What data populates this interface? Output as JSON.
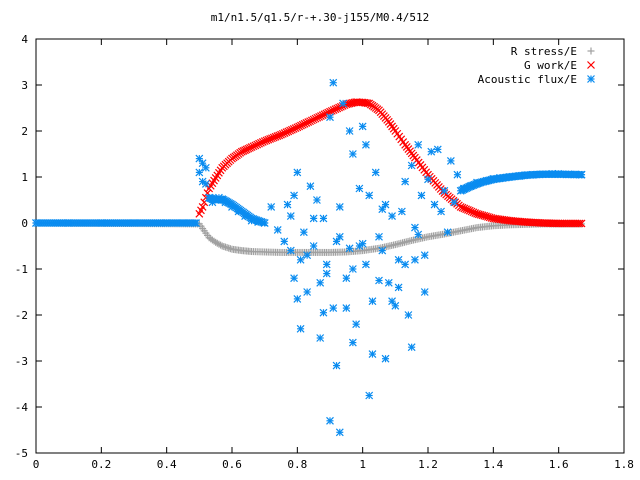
{
  "chart_data": {
    "type": "scatter",
    "title": "m1/n1.5/q1.5/r-+.30-j155/M0.4/512",
    "xlabel": "",
    "ylabel": "",
    "xlim": [
      0,
      1.8
    ],
    "ylim": [
      -5,
      4
    ],
    "x_ticks": [
      "0",
      "0.2",
      "0.4",
      "0.6",
      "0.8",
      "1",
      "1.2",
      "1.4",
      "1.6",
      "1.8"
    ],
    "y_ticks": [
      "4",
      "3",
      "2",
      "1",
      "0",
      "-1",
      "-2",
      "-3",
      "-4",
      "-5"
    ],
    "grid": false,
    "legend_position": "top-right",
    "series": [
      {
        "name": "R stress/E",
        "marker": "plus",
        "color": "#a0a0a0",
        "x": [
          0.0,
          0.5,
          0.51,
          0.52,
          0.53,
          0.55,
          0.57,
          0.6,
          0.63,
          0.66,
          0.7,
          0.75,
          0.8,
          0.85,
          0.9,
          0.95,
          1.0,
          1.05,
          1.1,
          1.15,
          1.2,
          1.25,
          1.3,
          1.35,
          1.4,
          1.45,
          1.5,
          1.55,
          1.6,
          1.67
        ],
        "y": [
          0.0,
          -0.02,
          -0.12,
          -0.22,
          -0.32,
          -0.42,
          -0.5,
          -0.57,
          -0.6,
          -0.62,
          -0.63,
          -0.64,
          -0.64,
          -0.64,
          -0.64,
          -0.63,
          -0.6,
          -0.55,
          -0.47,
          -0.38,
          -0.3,
          -0.24,
          -0.17,
          -0.1,
          -0.06,
          -0.04,
          -0.03,
          -0.02,
          -0.02,
          -0.02
        ]
      },
      {
        "name": "G work/E",
        "marker": "cross",
        "color": "#ff0000",
        "x": [
          0.5,
          0.51,
          0.52,
          0.53,
          0.55,
          0.57,
          0.6,
          0.63,
          0.66,
          0.7,
          0.75,
          0.8,
          0.85,
          0.9,
          0.95,
          0.98,
          1.0,
          1.02,
          1.05,
          1.08,
          1.1,
          1.13,
          1.16,
          1.2,
          1.25,
          1.3,
          1.35,
          1.4,
          1.45,
          1.5,
          1.55,
          1.6,
          1.67
        ],
        "y": [
          0.2,
          0.35,
          0.55,
          0.75,
          0.98,
          1.2,
          1.4,
          1.55,
          1.65,
          1.78,
          1.92,
          2.08,
          2.25,
          2.42,
          2.58,
          2.63,
          2.62,
          2.6,
          2.45,
          2.2,
          2.0,
          1.7,
          1.42,
          1.05,
          0.65,
          0.35,
          0.2,
          0.1,
          0.05,
          0.02,
          0.0,
          -0.01,
          -0.01
        ]
      },
      {
        "name": "Acoustic flux/E",
        "marker": "star",
        "color": "#0a8cf0",
        "x": [
          0.0,
          0.1,
          0.2,
          0.3,
          0.4,
          0.45,
          0.49,
          0.5,
          0.5,
          0.51,
          0.51,
          0.52,
          0.52,
          0.53,
          0.54,
          0.55,
          0.56,
          0.57,
          0.58,
          0.6,
          0.62,
          0.64,
          0.66,
          0.68,
          0.7,
          0.72,
          0.74,
          0.76,
          0.77,
          0.78,
          0.78,
          0.79,
          0.8,
          0.8,
          0.81,
          0.82,
          0.83,
          0.84,
          0.85,
          0.86,
          0.87,
          0.88,
          0.89,
          0.9,
          0.91,
          0.92,
          0.93,
          0.94,
          0.95,
          0.96,
          0.97,
          0.98,
          0.99,
          1.0,
          1.01,
          1.02,
          1.03,
          1.04,
          1.05,
          1.06,
          1.07,
          1.08,
          1.09,
          1.1,
          1.11,
          1.12,
          1.13,
          1.14,
          1.15,
          1.16,
          1.17,
          1.18,
          1.19,
          1.2,
          1.21,
          1.22,
          1.23,
          1.24,
          1.25,
          1.26,
          1.27,
          1.28,
          1.29,
          0.79,
          0.81,
          0.83,
          0.85,
          0.87,
          0.89,
          0.91,
          0.93,
          0.95,
          0.97,
          0.99,
          1.01,
          1.03,
          1.05,
          1.07,
          1.09,
          1.11,
          1.13,
          1.15,
          1.17,
          1.19,
          0.9,
          0.93,
          1.02,
          1.0,
          0.97,
          0.88,
          1.06,
          1.16,
          0.92,
          0.96,
          1.31,
          1.33,
          1.35,
          1.38,
          1.4,
          1.42,
          1.45,
          1.48,
          1.5,
          1.52,
          1.55,
          1.58,
          1.6,
          1.63,
          1.65,
          1.67
        ],
        "y": [
          0.0,
          0.0,
          0.0,
          0.0,
          0.0,
          0.0,
          0.0,
          1.4,
          1.1,
          1.3,
          0.9,
          1.2,
          0.85,
          0.55,
          0.45,
          0.5,
          0.55,
          0.5,
          0.45,
          0.35,
          0.25,
          0.15,
          0.05,
          0.02,
          0.0,
          0.35,
          -0.15,
          -0.4,
          0.4,
          0.15,
          -0.6,
          0.6,
          -1.65,
          1.1,
          -0.8,
          -0.2,
          -1.5,
          0.8,
          -0.5,
          0.5,
          -2.5,
          0.1,
          -1.1,
          2.3,
          -1.85,
          -0.4,
          0.35,
          2.6,
          -1.2,
          -0.55,
          1.5,
          -2.2,
          0.75,
          2.1,
          -0.9,
          0.6,
          -1.7,
          1.1,
          -0.3,
          -0.6,
          0.4,
          -1.3,
          0.15,
          -1.8,
          -0.8,
          0.25,
          0.9,
          -2.0,
          1.25,
          -0.1,
          1.7,
          0.6,
          -0.7,
          0.95,
          1.55,
          0.4,
          1.6,
          0.25,
          0.7,
          -0.2,
          1.35,
          0.45,
          1.05,
          -1.2,
          -2.3,
          -0.7,
          0.1,
          -1.3,
          -0.9,
          3.05,
          -0.3,
          -1.85,
          -2.6,
          -0.5,
          1.7,
          -2.85,
          -1.25,
          -2.95,
          -1.7,
          -1.4,
          -0.9,
          -2.7,
          -0.25,
          -1.5,
          -4.3,
          -4.55,
          -3.75,
          -0.45,
          -1.0,
          -1.95,
          0.3,
          -0.8,
          -3.1,
          2.0,
          0.75,
          0.8,
          0.88,
          0.92,
          0.96,
          0.98,
          1.0,
          1.02,
          1.04,
          1.05,
          1.06,
          1.07,
          1.07,
          1.06,
          1.06,
          1.05
        ]
      }
    ]
  }
}
